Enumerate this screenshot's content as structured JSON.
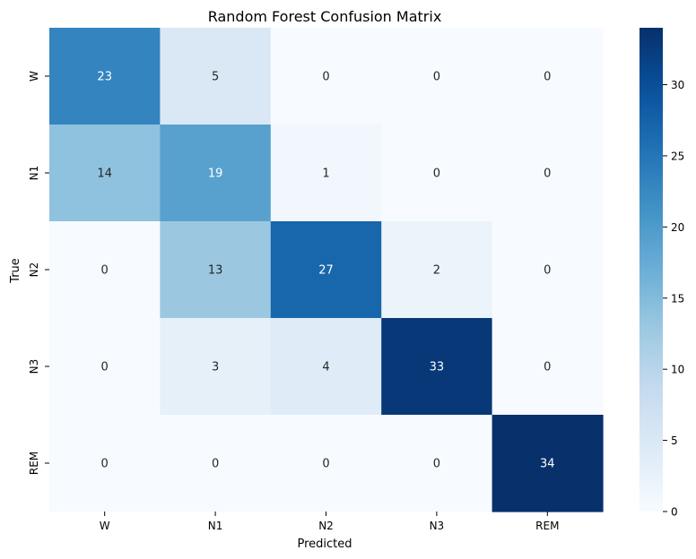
{
  "chart_data": {
    "type": "heatmap",
    "title": "Random Forest Confusion Matrix",
    "xlabel": "Predicted",
    "ylabel": "True",
    "x_categories": [
      "W",
      "N1",
      "N2",
      "N3",
      "REM"
    ],
    "y_categories": [
      "W",
      "N1",
      "N2",
      "N3",
      "REM"
    ],
    "values": [
      [
        23,
        5,
        0,
        0,
        0
      ],
      [
        14,
        19,
        1,
        0,
        0
      ],
      [
        0,
        13,
        27,
        2,
        0
      ],
      [
        0,
        3,
        4,
        33,
        0
      ],
      [
        0,
        0,
        0,
        0,
        34
      ]
    ],
    "colormap": "Blues",
    "vmin": 0,
    "vmax": 34,
    "colorbar_ticks": [
      0,
      5,
      10,
      15,
      20,
      25,
      30
    ],
    "annotation_dark_color": "#262626",
    "annotation_light_color": "#ffffff"
  }
}
